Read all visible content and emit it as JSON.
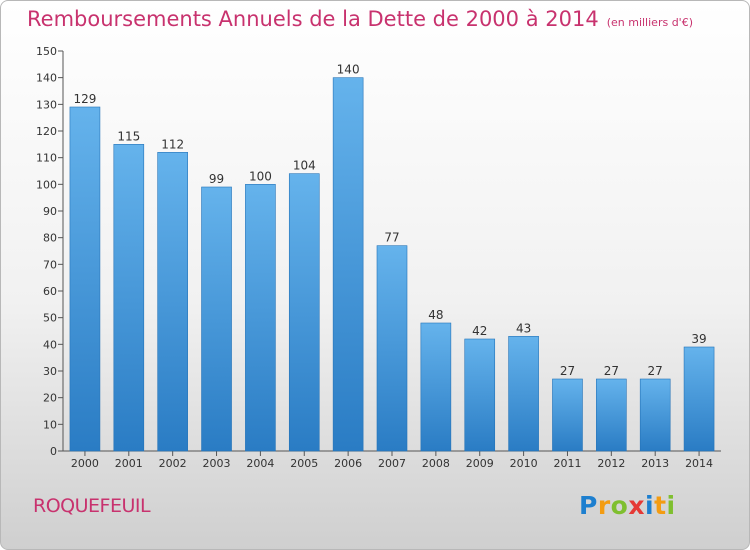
{
  "header": {
    "title": "Remboursements Annuels de la Dette de 2000 à 2014",
    "unit": "(en milliers d'€)"
  },
  "footer": {
    "commune": "ROQUEFEUIL",
    "logo_text": "Proxiti"
  },
  "colors": {
    "accent": "#c8326e",
    "bar_light": "#63b0ea",
    "bar_dark": "#2a7fc8"
  },
  "chart_data": {
    "type": "bar",
    "title": "Remboursements Annuels de la Dette de 2000 à 2014",
    "subtitle": "(en milliers d'€)",
    "xlabel": "",
    "ylabel": "",
    "categories": [
      "2000",
      "2001",
      "2002",
      "2003",
      "2004",
      "2005",
      "2006",
      "2007",
      "2008",
      "2009",
      "2010",
      "2011",
      "2012",
      "2013",
      "2014"
    ],
    "values": [
      129,
      115,
      112,
      99,
      100,
      104,
      140,
      77,
      48,
      42,
      43,
      27,
      27,
      27,
      39
    ],
    "ylim": [
      0,
      150
    ],
    "yticks": [
      0,
      10,
      20,
      30,
      40,
      50,
      60,
      70,
      80,
      90,
      100,
      110,
      120,
      130,
      140,
      150
    ],
    "grid": false,
    "legend": "none"
  }
}
